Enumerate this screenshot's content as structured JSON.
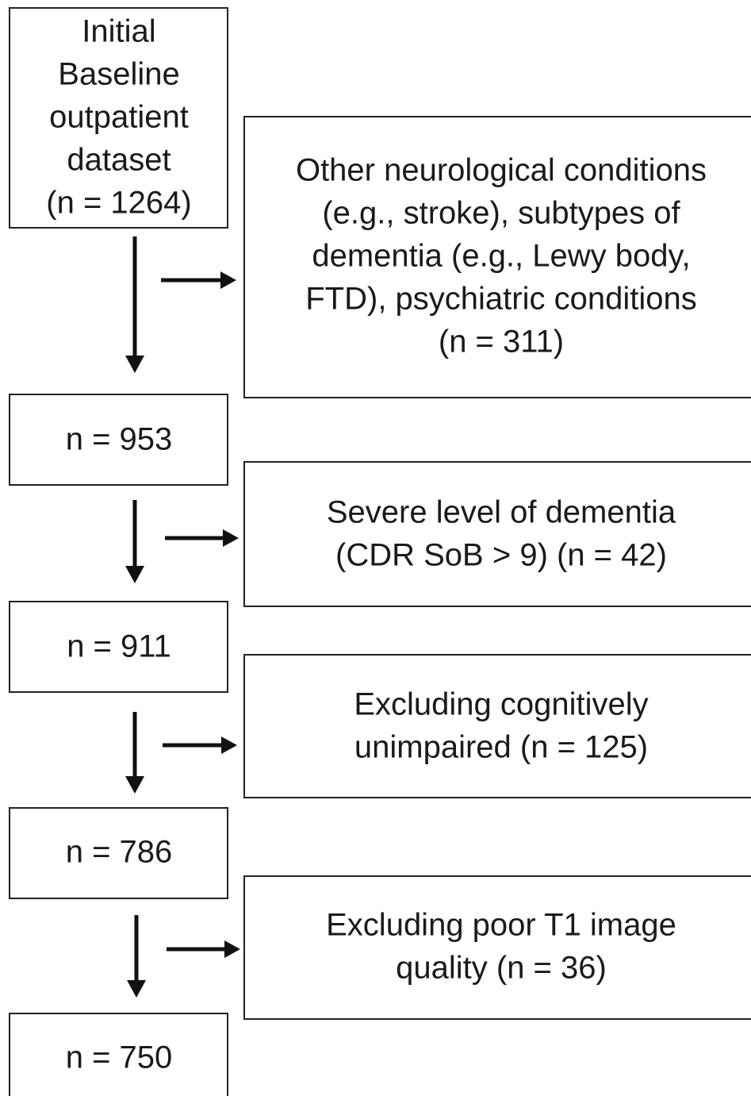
{
  "nodes": [
    {
      "lines": [
        "Initial",
        "Baseline",
        "outpatient",
        "dataset",
        "(n = 1264)"
      ]
    },
    {
      "lines": [
        "Other neurological conditions",
        "(e.g., stroke), subtypes of",
        "dementia (e.g., Lewy body,",
        "FTD), psychiatric conditions",
        "(n = 311)"
      ]
    },
    {
      "lines": [
        "n = 953"
      ]
    },
    {
      "lines": [
        "Severe level of dementia",
        "(CDR SoB > 9) (n = 42)"
      ]
    },
    {
      "lines": [
        "n = 911"
      ]
    },
    {
      "lines": [
        "Excluding cognitively",
        "unimpaired (n = 125)"
      ]
    },
    {
      "lines": [
        "n = 786"
      ]
    },
    {
      "lines": [
        "Excluding poor T1 image",
        "quality (n = 36)"
      ]
    },
    {
      "lines": [
        "n = 750"
      ]
    }
  ]
}
